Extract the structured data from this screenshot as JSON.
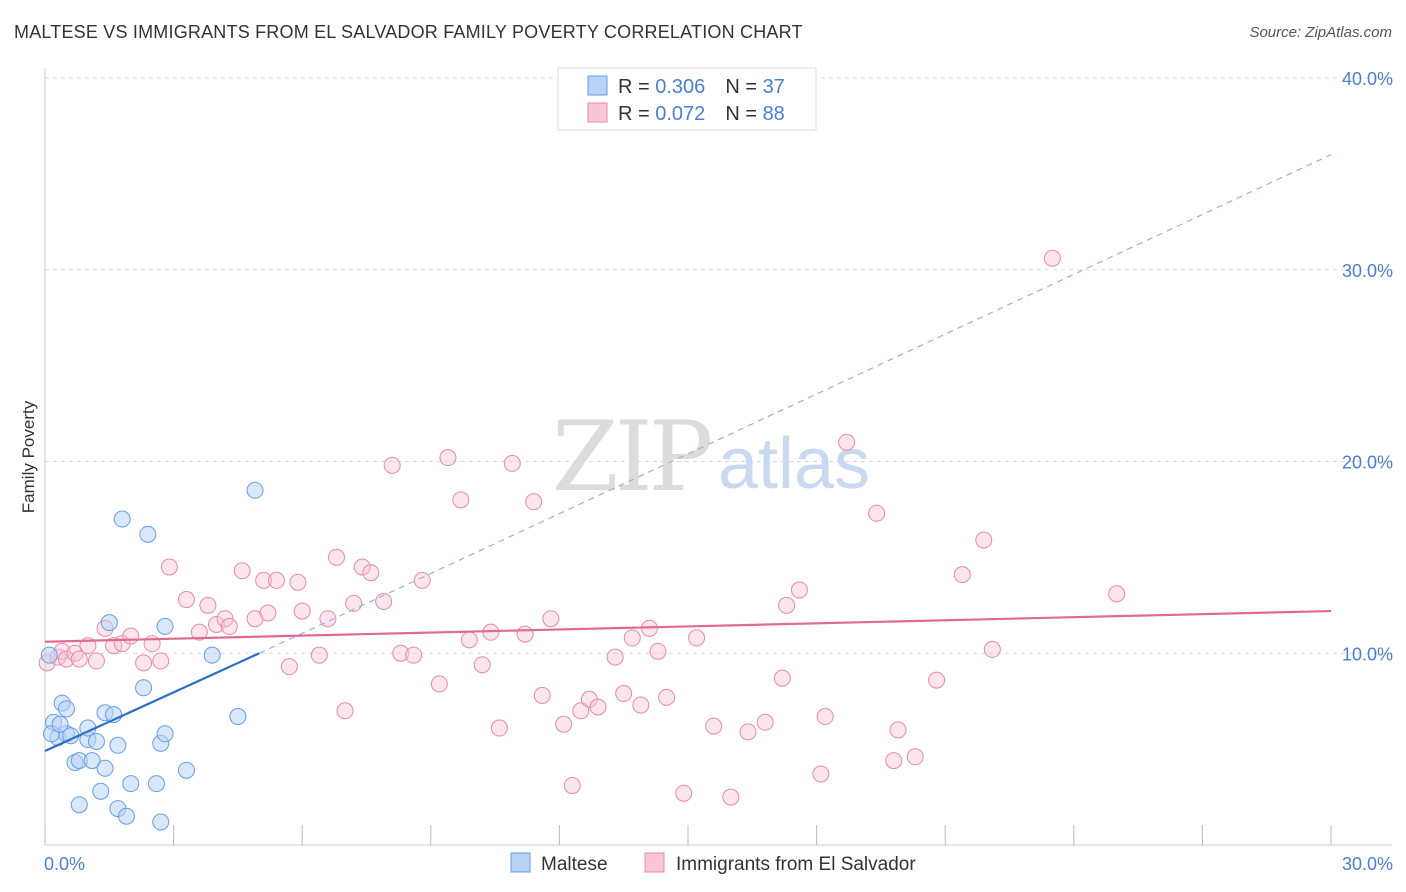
{
  "title": "MALTESE VS IMMIGRANTS FROM EL SALVADOR FAMILY POVERTY CORRELATION CHART",
  "source": "Source: ZipAtlas.com",
  "watermark": {
    "zip": "ZIP",
    "atlas": "atlas"
  },
  "colors": {
    "maltese_fill": "#b8d3f5",
    "maltese_stroke": "#6a9de0",
    "maltese_line": "#2c6fc9",
    "salvador_fill": "#f8c6d4",
    "salvador_stroke": "#e88aa8",
    "salvador_line": "#e06a94",
    "tick_text": "#4a7fd4",
    "grid": "#d8d8d8"
  },
  "legend": {
    "row1": {
      "r_label": "R = ",
      "r_value": "0.306",
      "n_label": "N = ",
      "n_value": "37"
    },
    "row2": {
      "r_label": "R = ",
      "r_value": "0.072",
      "n_label": "N = ",
      "n_value": "88"
    }
  },
  "chart_data": {
    "type": "scatter",
    "title": "MALTESE VS IMMIGRANTS FROM EL SALVADOR FAMILY POVERTY CORRELATION CHART",
    "xlabel": "",
    "ylabel": "Family Poverty",
    "xlim": [
      0,
      30
    ],
    "ylim": [
      0,
      40
    ],
    "x_tick_labels": [
      "0.0%",
      "30.0%"
    ],
    "y_ticks": [
      10,
      20,
      30,
      40
    ],
    "y_tick_labels": [
      "10.0%",
      "20.0%",
      "30.0%",
      "40.0%"
    ],
    "legend_position": "top-center",
    "series": [
      {
        "name": "Maltese",
        "R": 0.306,
        "N": 37,
        "trend": {
          "x1": 0,
          "y1": 4.9,
          "x2": 5.0,
          "y2": 10.0,
          "extend_to_x": 30,
          "extend_to_y": 36.0
        },
        "points": [
          [
            0.1,
            9.9
          ],
          [
            0.2,
            6.4
          ],
          [
            0.3,
            5.6
          ],
          [
            0.4,
            7.4
          ],
          [
            0.5,
            7.1
          ],
          [
            0.5,
            5.8
          ],
          [
            0.6,
            5.7
          ],
          [
            0.7,
            4.3
          ],
          [
            0.8,
            4.4
          ],
          [
            0.8,
            2.1
          ],
          [
            1.0,
            5.5
          ],
          [
            1.0,
            6.1
          ],
          [
            1.1,
            4.4
          ],
          [
            1.2,
            5.4
          ],
          [
            1.3,
            2.8
          ],
          [
            1.4,
            6.9
          ],
          [
            1.4,
            4.0
          ],
          [
            1.5,
            11.6
          ],
          [
            1.6,
            6.8
          ],
          [
            1.7,
            1.9
          ],
          [
            1.7,
            5.2
          ],
          [
            1.8,
            17.0
          ],
          [
            1.9,
            1.5
          ],
          [
            2.0,
            3.2
          ],
          [
            2.3,
            8.2
          ],
          [
            2.4,
            16.2
          ],
          [
            2.6,
            3.2
          ],
          [
            2.7,
            1.2
          ],
          [
            2.7,
            5.3
          ],
          [
            2.8,
            5.8
          ],
          [
            2.8,
            11.4
          ],
          [
            3.3,
            3.9
          ],
          [
            3.9,
            9.9
          ],
          [
            4.5,
            6.7
          ],
          [
            4.9,
            18.5
          ],
          [
            0.15,
            5.8
          ],
          [
            0.35,
            6.3
          ]
        ]
      },
      {
        "name": "Immigrants from El Salvador",
        "R": 0.072,
        "N": 88,
        "trend": {
          "x1": 0,
          "y1": 10.6,
          "x2": 30,
          "y2": 12.2
        },
        "points": [
          [
            0.05,
            9.5
          ],
          [
            0.3,
            9.8
          ],
          [
            0.4,
            10.1
          ],
          [
            0.5,
            9.7
          ],
          [
            0.7,
            10.0
          ],
          [
            0.8,
            9.7
          ],
          [
            1.0,
            10.4
          ],
          [
            1.2,
            9.6
          ],
          [
            1.4,
            11.3
          ],
          [
            1.6,
            10.4
          ],
          [
            1.8,
            10.5
          ],
          [
            2.0,
            10.9
          ],
          [
            2.3,
            9.5
          ],
          [
            2.5,
            10.5
          ],
          [
            2.7,
            9.6
          ],
          [
            2.9,
            14.5
          ],
          [
            3.3,
            12.8
          ],
          [
            3.6,
            11.1
          ],
          [
            3.8,
            12.5
          ],
          [
            4.0,
            11.5
          ],
          [
            4.2,
            11.8
          ],
          [
            4.3,
            11.4
          ],
          [
            4.6,
            14.3
          ],
          [
            4.9,
            11.8
          ],
          [
            5.1,
            13.8
          ],
          [
            5.2,
            12.1
          ],
          [
            5.4,
            13.8
          ],
          [
            5.7,
            9.3
          ],
          [
            5.9,
            13.7
          ],
          [
            6.0,
            12.2
          ],
          [
            6.4,
            9.9
          ],
          [
            6.6,
            11.8
          ],
          [
            6.8,
            15.0
          ],
          [
            7.0,
            7.0
          ],
          [
            7.2,
            12.6
          ],
          [
            7.4,
            14.5
          ],
          [
            7.6,
            14.2
          ],
          [
            7.9,
            12.7
          ],
          [
            8.1,
            19.8
          ],
          [
            8.3,
            10.0
          ],
          [
            8.6,
            9.9
          ],
          [
            8.8,
            13.8
          ],
          [
            9.2,
            8.4
          ],
          [
            9.4,
            20.2
          ],
          [
            9.7,
            18.0
          ],
          [
            9.9,
            10.7
          ],
          [
            10.2,
            9.4
          ],
          [
            10.4,
            11.1
          ],
          [
            10.6,
            6.1
          ],
          [
            10.9,
            19.9
          ],
          [
            11.2,
            11.0
          ],
          [
            11.4,
            17.9
          ],
          [
            11.6,
            7.8
          ],
          [
            11.8,
            11.8
          ],
          [
            12.1,
            6.3
          ],
          [
            12.3,
            3.1
          ],
          [
            12.5,
            7.0
          ],
          [
            12.7,
            7.6
          ],
          [
            12.9,
            7.2
          ],
          [
            13.3,
            9.8
          ],
          [
            13.5,
            7.9
          ],
          [
            13.7,
            10.8
          ],
          [
            13.9,
            7.3
          ],
          [
            14.1,
            11.3
          ],
          [
            14.3,
            10.1
          ],
          [
            14.5,
            7.7
          ],
          [
            14.9,
            2.7
          ],
          [
            15.2,
            10.8
          ],
          [
            15.6,
            6.2
          ],
          [
            16.0,
            2.5
          ],
          [
            16.4,
            5.9
          ],
          [
            16.8,
            6.4
          ],
          [
            17.2,
            8.7
          ],
          [
            17.3,
            12.5
          ],
          [
            17.6,
            13.3
          ],
          [
            18.1,
            3.7
          ],
          [
            18.2,
            6.7
          ],
          [
            18.7,
            21.0
          ],
          [
            19.4,
            17.3
          ],
          [
            19.9,
            6.0
          ],
          [
            20.3,
            4.6
          ],
          [
            20.8,
            8.6
          ],
          [
            21.4,
            14.1
          ],
          [
            21.9,
            15.9
          ],
          [
            22.1,
            10.2
          ],
          [
            19.8,
            4.4
          ],
          [
            23.5,
            30.6
          ],
          [
            25.0,
            13.1
          ]
        ]
      }
    ]
  },
  "bottom_legend": [
    {
      "label": "Maltese"
    },
    {
      "label": "Immigrants from El Salvador"
    }
  ]
}
